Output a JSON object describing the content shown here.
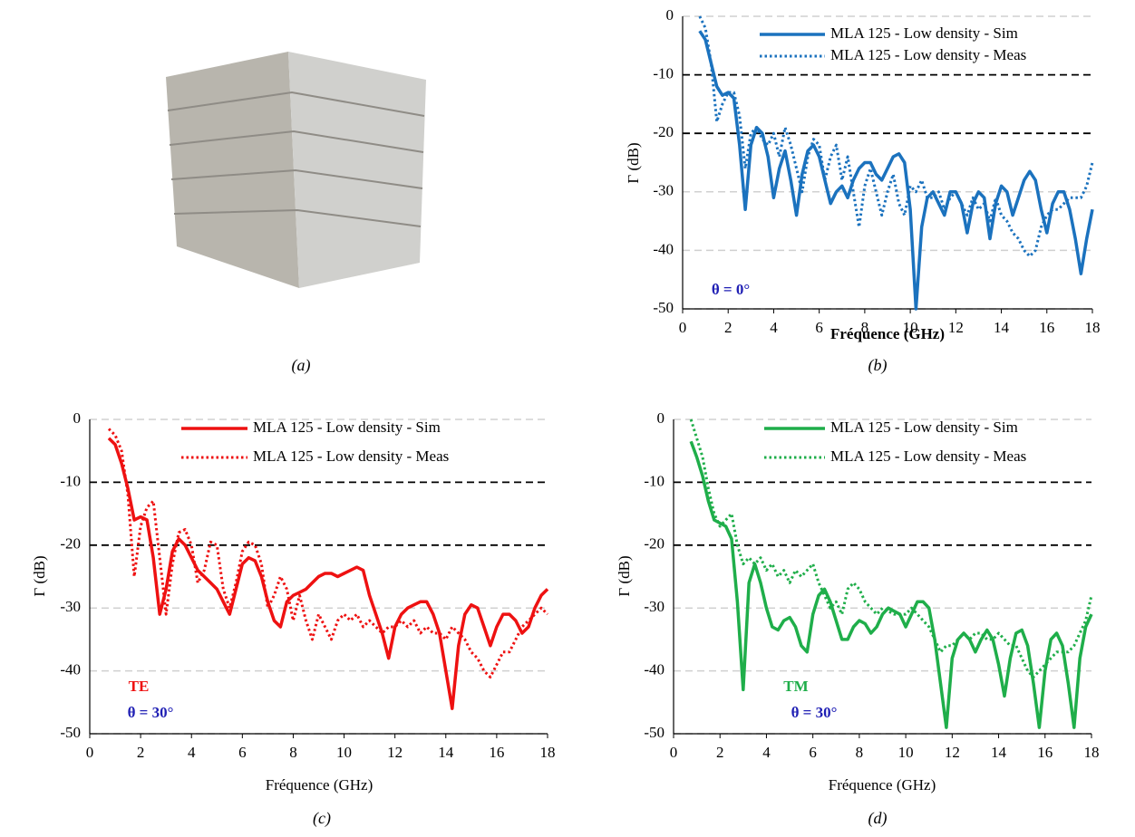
{
  "photo": {
    "caption": "(a)"
  },
  "chart_data": [
    {
      "type": "line",
      "caption": "(b)",
      "x_label": "Fréquence (GHz)",
      "x_label_bold": true,
      "y_label": "Γ (dB)",
      "xlim": [
        0,
        18
      ],
      "xticks": [
        0,
        2,
        4,
        6,
        8,
        10,
        12,
        14,
        16,
        18
      ],
      "ylim": [
        -50,
        0
      ],
      "yticks": [
        -50,
        -40,
        -30,
        -20,
        -10,
        0
      ],
      "grid": true,
      "grid_color": "#d0d0d0",
      "hlines": [
        -10,
        -20
      ],
      "hline_color": "#000000",
      "annotations": [
        {
          "text": "θ = 0°",
          "color": "#1f1fb4"
        }
      ],
      "x": [
        0.75,
        1,
        1.25,
        1.5,
        1.75,
        2,
        2.25,
        2.5,
        2.75,
        3,
        3.25,
        3.5,
        3.75,
        4,
        4.25,
        4.5,
        4.75,
        5,
        5.25,
        5.5,
        5.75,
        6,
        6.25,
        6.5,
        6.75,
        7,
        7.25,
        7.5,
        7.75,
        8,
        8.25,
        8.5,
        8.75,
        9,
        9.25,
        9.5,
        9.75,
        10,
        10.25,
        10.5,
        10.75,
        11,
        11.25,
        11.5,
        11.75,
        12,
        12.25,
        12.5,
        12.75,
        13,
        13.25,
        13.5,
        13.75,
        14,
        14.25,
        14.5,
        14.75,
        15,
        15.25,
        15.5,
        15.75,
        16,
        16.25,
        16.5,
        16.75,
        17,
        17.25,
        17.5,
        17.75,
        18
      ],
      "series": [
        {
          "name": "MLA 125 - Low density - Sim",
          "color": "#1b72be",
          "style": "solid",
          "values": [
            -2.5,
            -4,
            -8,
            -12,
            -13.5,
            -13,
            -14,
            -22,
            -33,
            -22,
            -19,
            -20,
            -24,
            -31,
            -26,
            -23,
            -28,
            -34,
            -27,
            -23,
            -22,
            -24,
            -28,
            -32,
            -30,
            -29,
            -31,
            -28,
            -26,
            -25,
            -25,
            -27,
            -28,
            -26,
            -24,
            -23.5,
            -25,
            -33,
            -50,
            -36,
            -31,
            -30,
            -32,
            -34,
            -30,
            -30,
            -32,
            -37,
            -32,
            -30,
            -31,
            -38,
            -32,
            -29,
            -30,
            -34,
            -31,
            -28,
            -26.5,
            -28,
            -33,
            -37,
            -32,
            -30,
            -30,
            -33,
            -38,
            -44,
            -38,
            -33
          ]
        },
        {
          "name": "MLA 125 - Low density - Meas",
          "color": "#1b72be",
          "style": "dotted",
          "values": [
            0,
            -2,
            -8,
            -18,
            -15,
            -13,
            -13,
            -17,
            -26,
            -20,
            -19,
            -21,
            -22,
            -20,
            -24,
            -19,
            -22,
            -26,
            -30,
            -24,
            -21,
            -22,
            -28,
            -24,
            -22,
            -28,
            -24,
            -30,
            -36,
            -29,
            -26,
            -30,
            -34,
            -30,
            -27,
            -32,
            -34,
            -29,
            -30,
            -28,
            -31,
            -31,
            -30,
            -33,
            -31,
            -30,
            -32,
            -34,
            -31,
            -33,
            -32,
            -35,
            -31,
            -34,
            -35,
            -37,
            -38,
            -40,
            -41,
            -40,
            -36,
            -34,
            -33,
            -33,
            -32,
            -31,
            -31,
            -31,
            -29,
            -25
          ]
        }
      ]
    },
    {
      "type": "line",
      "caption": "(c)",
      "x_label": "Fréquence (GHz)",
      "x_label_bold": false,
      "y_label": "Γ (dB)",
      "xlim": [
        0,
        18
      ],
      "xticks": [
        0,
        2,
        4,
        6,
        8,
        10,
        12,
        14,
        16,
        18
      ],
      "ylim": [
        -50,
        0
      ],
      "yticks": [
        -50,
        -40,
        -30,
        -20,
        -10,
        0
      ],
      "grid": true,
      "grid_color": "#d0d0d0",
      "hlines": [
        -10,
        -20
      ],
      "hline_color": "#000000",
      "annotations": [
        {
          "text": "TE",
          "color": "#ee1111"
        },
        {
          "text": "θ = 30°",
          "color": "#1f1fb4"
        }
      ],
      "x": [
        0.75,
        1,
        1.25,
        1.5,
        1.75,
        2,
        2.25,
        2.5,
        2.75,
        3,
        3.25,
        3.5,
        3.75,
        4,
        4.25,
        4.5,
        4.75,
        5,
        5.25,
        5.5,
        5.75,
        6,
        6.25,
        6.5,
        6.75,
        7,
        7.25,
        7.5,
        7.75,
        8,
        8.25,
        8.5,
        8.75,
        9,
        9.25,
        9.5,
        9.75,
        10,
        10.25,
        10.5,
        10.75,
        11,
        11.25,
        11.5,
        11.75,
        12,
        12.25,
        12.5,
        12.75,
        13,
        13.25,
        13.5,
        13.75,
        14,
        14.25,
        14.5,
        14.75,
        15,
        15.25,
        15.5,
        15.75,
        16,
        16.25,
        16.5,
        16.75,
        17,
        17.25,
        17.5,
        17.75,
        18
      ],
      "series": [
        {
          "name": "MLA 125 - Low density - Sim",
          "color": "#ee1111",
          "style": "solid",
          "values": [
            -3,
            -4,
            -7,
            -11,
            -16,
            -15.5,
            -16,
            -22,
            -31,
            -27,
            -21,
            -19,
            -20,
            -22,
            -24,
            -25,
            -26,
            -27,
            -29,
            -31,
            -27,
            -23,
            -22,
            -22.5,
            -25,
            -29,
            -32,
            -33,
            -29,
            -28,
            -27.5,
            -27,
            -26,
            -25,
            -24.5,
            -24.5,
            -25,
            -24.5,
            -24,
            -23.5,
            -24,
            -28,
            -31,
            -34,
            -38,
            -33,
            -31,
            -30,
            -29.5,
            -29,
            -29,
            -31,
            -34,
            -40,
            -46,
            -36,
            -31,
            -29.5,
            -30,
            -33,
            -36,
            -33,
            -31,
            -31,
            -32,
            -34,
            -33,
            -30,
            -28,
            -27
          ]
        },
        {
          "name": "MLA 125 - Low density - Meas",
          "color": "#ee1111",
          "style": "dotted",
          "values": [
            -1.5,
            -2.5,
            -5,
            -12,
            -25,
            -17,
            -14,
            -13,
            -22,
            -31,
            -23,
            -18,
            -17.5,
            -20,
            -26,
            -24,
            -19.5,
            -20,
            -27,
            -30,
            -26,
            -21,
            -19.5,
            -20,
            -23,
            -30,
            -28,
            -25,
            -27,
            -32,
            -28,
            -32,
            -35,
            -31,
            -33,
            -35,
            -32,
            -31,
            -32,
            -31,
            -33,
            -32,
            -33,
            -34,
            -33,
            -33,
            -32,
            -33,
            -32,
            -34,
            -33,
            -34,
            -34,
            -35,
            -33,
            -34,
            -35,
            -37,
            -38,
            -40,
            -41,
            -39,
            -37,
            -37,
            -35,
            -33,
            -32,
            -31,
            -30,
            -31
          ]
        }
      ]
    },
    {
      "type": "line",
      "caption": "(d)",
      "x_label": "Fréquence (GHz)",
      "x_label_bold": false,
      "y_label": "Γ (dB)",
      "xlim": [
        0,
        18
      ],
      "xticks": [
        0,
        2,
        4,
        6,
        8,
        10,
        12,
        14,
        16,
        18
      ],
      "ylim": [
        -50,
        0
      ],
      "yticks": [
        -50,
        -40,
        -30,
        -20,
        -10,
        0
      ],
      "grid": true,
      "grid_color": "#d0d0d0",
      "hlines": [
        -10,
        -20
      ],
      "hline_color": "#000000",
      "annotations": [
        {
          "text": "TM",
          "color": "#1fae4a"
        },
        {
          "text": "θ = 30°",
          "color": "#1f1fb4"
        }
      ],
      "x": [
        0.75,
        1,
        1.25,
        1.5,
        1.75,
        2,
        2.25,
        2.5,
        2.75,
        3,
        3.25,
        3.5,
        3.75,
        4,
        4.25,
        4.5,
        4.75,
        5,
        5.25,
        5.5,
        5.75,
        6,
        6.25,
        6.5,
        6.75,
        7,
        7.25,
        7.5,
        7.75,
        8,
        8.25,
        8.5,
        8.75,
        9,
        9.25,
        9.5,
        9.75,
        10,
        10.25,
        10.5,
        10.75,
        11,
        11.25,
        11.5,
        11.75,
        12,
        12.25,
        12.5,
        12.75,
        13,
        13.25,
        13.5,
        13.75,
        14,
        14.25,
        14.5,
        14.75,
        15,
        15.25,
        15.5,
        15.75,
        16,
        16.25,
        16.5,
        16.75,
        17,
        17.25,
        17.5,
        17.75,
        18
      ],
      "series": [
        {
          "name": "MLA 125 - Low density - Sim",
          "color": "#1fae4a",
          "style": "solid",
          "values": [
            -3.5,
            -6,
            -9,
            -13,
            -16,
            -16.5,
            -17,
            -19,
            -29,
            -43,
            -26,
            -23,
            -26,
            -30,
            -33,
            -33.5,
            -32,
            -31.5,
            -33,
            -36,
            -37,
            -31,
            -28,
            -27,
            -29,
            -32,
            -35,
            -35,
            -33,
            -32,
            -32.5,
            -34,
            -33,
            -31,
            -30,
            -30.5,
            -31,
            -33,
            -31,
            -29,
            -29,
            -30,
            -35,
            -42,
            -49,
            -38,
            -35,
            -34,
            -35,
            -37,
            -35,
            -33.5,
            -35,
            -39,
            -44,
            -38,
            -34,
            -33.5,
            -36,
            -42,
            -49,
            -40,
            -35,
            -34,
            -36,
            -42,
            -49,
            -38,
            -33,
            -31
          ]
        },
        {
          "name": "MLA 125 - Low density - Meas",
          "color": "#1fae4a",
          "style": "dotted",
          "values": [
            0,
            -3,
            -6,
            -11,
            -15,
            -17,
            -16,
            -15,
            -20,
            -23,
            -22,
            -23,
            -22,
            -24,
            -23,
            -25,
            -24,
            -26,
            -24,
            -25,
            -24,
            -23,
            -26,
            -28,
            -30,
            -29,
            -31,
            -27,
            -26,
            -27,
            -29,
            -30,
            -31,
            -30,
            -30.5,
            -31,
            -31,
            -31,
            -30,
            -31,
            -32,
            -33,
            -35,
            -37,
            -36,
            -36,
            -35,
            -34,
            -35,
            -34,
            -34,
            -35,
            -35,
            -34,
            -35,
            -36,
            -36,
            -38,
            -40,
            -41,
            -40,
            -39,
            -38,
            -37,
            -37,
            -37,
            -36,
            -34,
            -32,
            -28
          ]
        }
      ]
    }
  ]
}
